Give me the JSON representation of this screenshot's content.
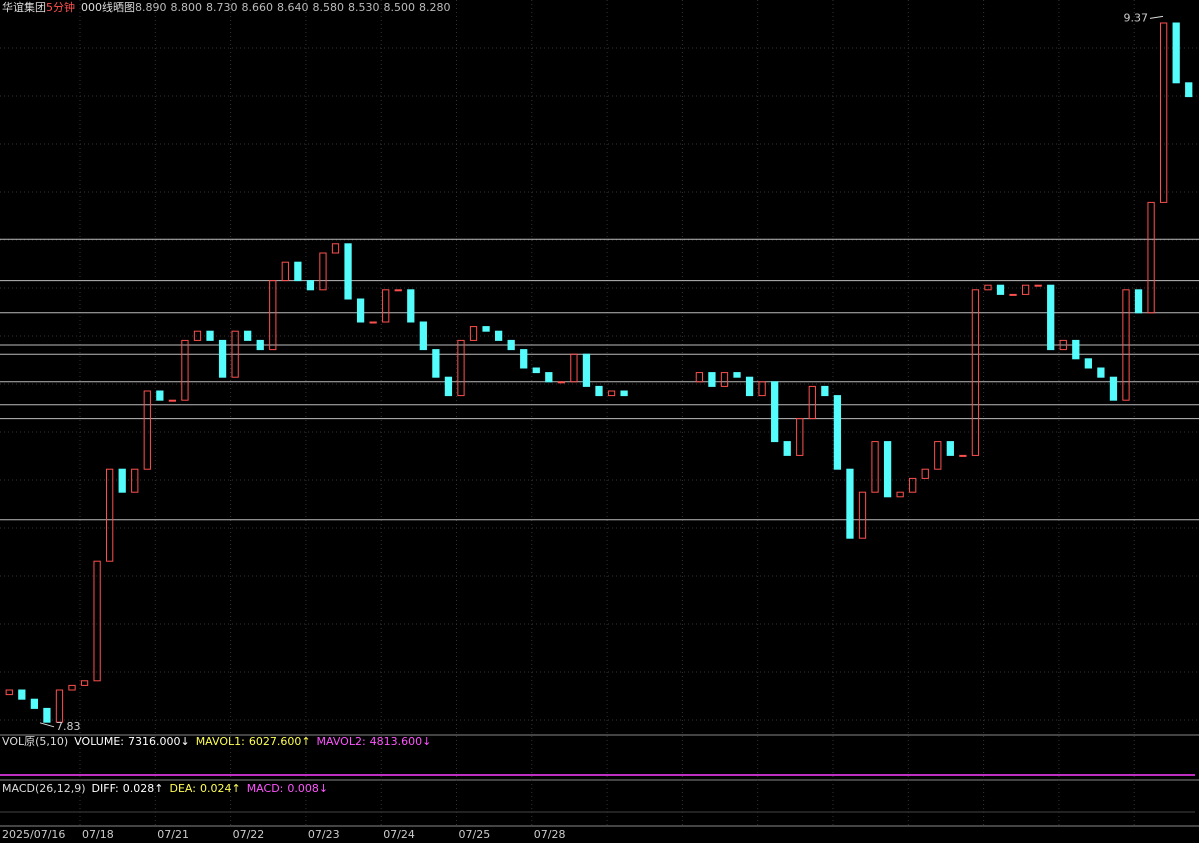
{
  "header": {
    "name": "华谊集团",
    "period": "5分钟",
    "tool": "000线晒图",
    "levels": [
      {
        "value": 8.89,
        "label": "8.890"
      },
      {
        "value": 8.8,
        "label": "8.800"
      },
      {
        "value": 8.73,
        "label": "8.730"
      },
      {
        "value": 8.66,
        "label": "8.660"
      },
      {
        "value": 8.64,
        "label": "8.640"
      },
      {
        "value": 8.58,
        "label": "8.580"
      },
      {
        "value": 8.53,
        "label": "8.530"
      },
      {
        "value": 8.5,
        "label": "8.500"
      },
      {
        "value": 8.28,
        "label": "8.280"
      }
    ]
  },
  "chart_data": {
    "type": "candlestick",
    "ylim": [
      7.81,
      9.41
    ],
    "up_color": "#ff5050",
    "down_color": "#54fcfc",
    "open": [
      7.9,
      7.91,
      7.89,
      7.87,
      7.84,
      7.91,
      7.92,
      7.93,
      8.19,
      8.39,
      8.34,
      8.39,
      8.56,
      8.54,
      8.54,
      8.67,
      8.69,
      8.67,
      8.59,
      8.69,
      8.67,
      8.65,
      8.8,
      8.84,
      8.8,
      8.78,
      8.86,
      8.88,
      8.76,
      8.71,
      8.71,
      8.78,
      8.78,
      8.71,
      8.65,
      8.59,
      8.55,
      8.67,
      8.7,
      8.69,
      8.67,
      8.65,
      8.61,
      8.6,
      8.58,
      8.58,
      8.64,
      8.57,
      8.55,
      8.56,
      null,
      null,
      null,
      null,
      null,
      8.58,
      8.6,
      8.57,
      8.6,
      8.59,
      8.55,
      8.58,
      8.45,
      8.42,
      8.5,
      8.57,
      8.55,
      8.39,
      8.24,
      8.34,
      8.45,
      8.33,
      8.34,
      8.37,
      8.39,
      8.45,
      8.42,
      8.42,
      8.78,
      8.79,
      8.77,
      8.77,
      8.79,
      8.79,
      8.65,
      8.67,
      8.63,
      8.61,
      8.59,
      8.54,
      8.78,
      8.73,
      8.97,
      9.36,
      9.23
    ],
    "close": [
      7.91,
      7.89,
      7.87,
      7.84,
      7.91,
      7.92,
      7.93,
      8.19,
      8.39,
      8.34,
      8.39,
      8.56,
      8.54,
      8.54,
      8.67,
      8.69,
      8.67,
      8.59,
      8.69,
      8.67,
      8.65,
      8.8,
      8.84,
      8.8,
      8.78,
      8.86,
      8.88,
      8.76,
      8.71,
      8.71,
      8.78,
      8.78,
      8.71,
      8.65,
      8.59,
      8.55,
      8.67,
      8.7,
      8.69,
      8.67,
      8.65,
      8.61,
      8.6,
      8.58,
      8.58,
      8.64,
      8.57,
      8.55,
      8.56,
      8.55,
      null,
      null,
      null,
      null,
      null,
      8.6,
      8.57,
      8.6,
      8.59,
      8.55,
      8.58,
      8.45,
      8.42,
      8.5,
      8.57,
      8.55,
      8.39,
      8.24,
      8.34,
      8.45,
      8.33,
      8.34,
      8.37,
      8.39,
      8.45,
      8.42,
      8.42,
      8.78,
      8.79,
      8.77,
      8.77,
      8.79,
      8.79,
      8.65,
      8.67,
      8.63,
      8.61,
      8.59,
      8.54,
      8.78,
      8.73,
      8.97,
      9.36,
      9.23,
      9.2
    ],
    "high_label": {
      "value": 9.37,
      "label": "9.37"
    },
    "low_label": {
      "value": 7.83,
      "label": "7.83"
    }
  },
  "volume_panel": {
    "name": "VOL原(5,10)",
    "items": [
      {
        "key": "VOLUME:",
        "value": "7316.000↓",
        "color": "#ffffff"
      },
      {
        "key": "MAVOL1:",
        "value": "6027.600↑",
        "color": "#ffff54"
      },
      {
        "key": "MAVOL2:",
        "value": "4813.600↓",
        "color": "#ff54ff"
      }
    ]
  },
  "macd_panel": {
    "name": "MACD(26,12,9)",
    "items": [
      {
        "key": "DIFF:",
        "value": "0.028↑",
        "color": "#ffffff"
      },
      {
        "key": "DEA:",
        "value": "0.024↑",
        "color": "#ffff54"
      },
      {
        "key": "MACD:",
        "value": "0.008↓",
        "color": "#ff54ff"
      }
    ]
  },
  "dates": [
    "2025/07/16",
    "07/18",
    "07/21",
    "07/22",
    "07/23",
    "07/24",
    "07/25",
    "07/28"
  ]
}
